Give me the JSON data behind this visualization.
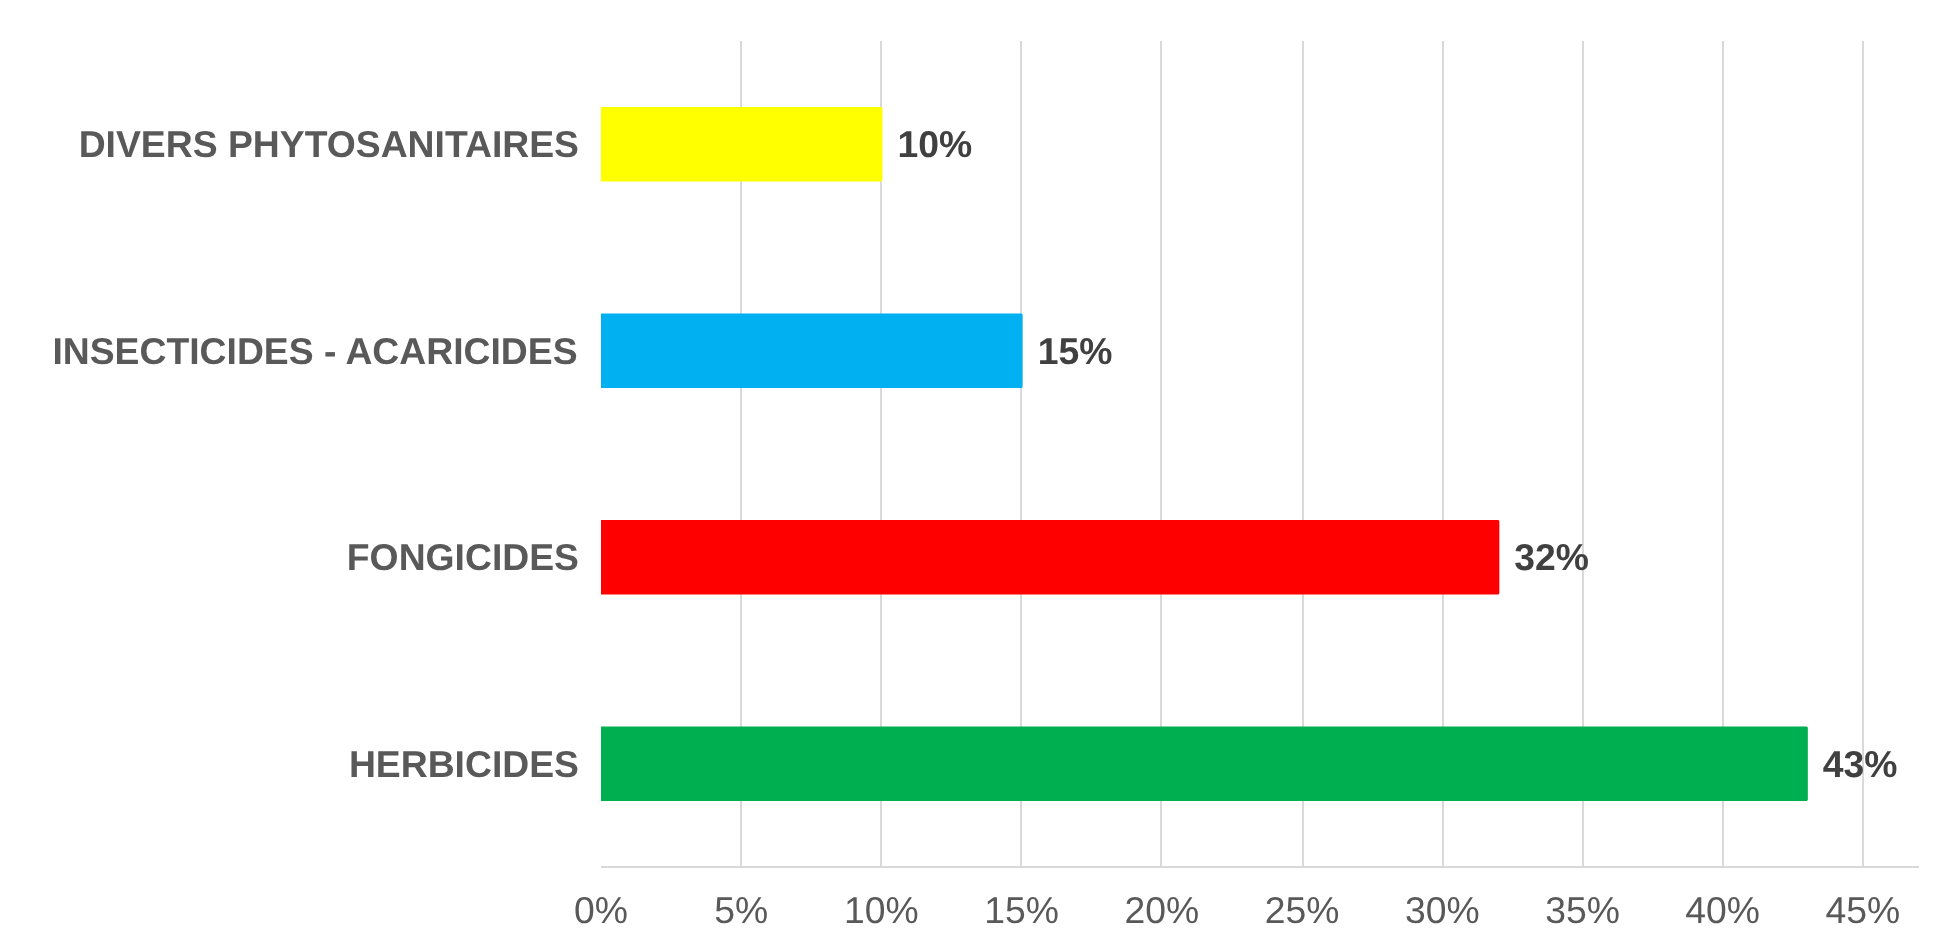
{
  "chart_data": {
    "type": "bar",
    "orientation": "horizontal",
    "categories": [
      "DIVERS PHYTOSANITAIRES",
      "INSECTICIDES - ACARICIDES",
      "FONGICIDES",
      "HERBICIDES"
    ],
    "values": [
      10,
      15,
      32,
      43
    ],
    "colors": [
      "#ffff00",
      "#00b0f0",
      "#ff0000",
      "#00b050"
    ],
    "value_labels": [
      "10%",
      "15%",
      "32%",
      "43%"
    ],
    "xlim": [
      0,
      47
    ],
    "xticks": [
      {
        "value": 0,
        "label": "0%"
      },
      {
        "value": 5,
        "label": "5%"
      },
      {
        "value": 10,
        "label": "10%"
      },
      {
        "value": 15,
        "label": "15%"
      },
      {
        "value": 20,
        "label": "20%"
      },
      {
        "value": 25,
        "label": "25%"
      },
      {
        "value": 30,
        "label": "30%"
      },
      {
        "value": 35,
        "label": "35%"
      },
      {
        "value": 40,
        "label": "40%"
      },
      {
        "value": 45,
        "label": "45%"
      }
    ],
    "grid": "x"
  }
}
